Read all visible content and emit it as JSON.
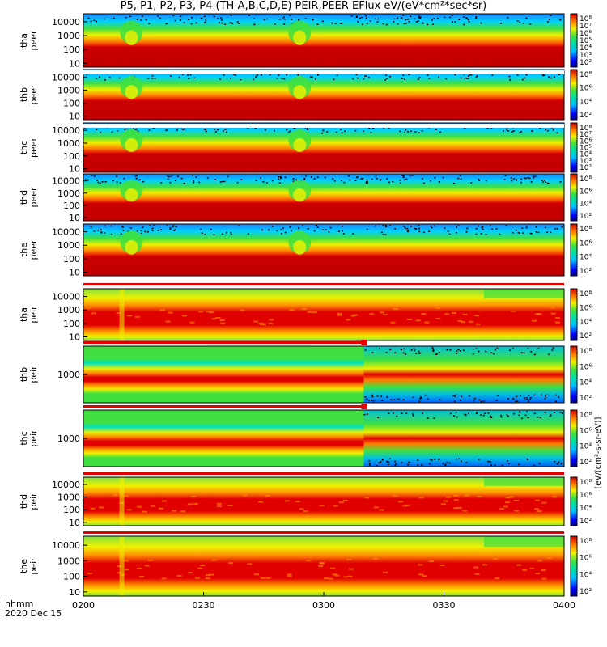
{
  "header": {
    "title": "P5, P1, P2, P3, P4 (TH-A,B,C,D,E) PEIR,PEER EFlux eV/(eV*cm²*sec*sr)"
  },
  "chart_data": {
    "type": "heatmap",
    "time_axis": {
      "label_line1": "hhmm",
      "label_line2": "2020 Dec 15",
      "ticks": [
        "0200",
        "0230",
        "0300",
        "0330",
        "0400"
      ],
      "range_minutes": [
        0,
        120
      ]
    },
    "colorbar_units": "[eV/(cm²-s-sr-eV)]",
    "panels": [
      {
        "id": "tha_peer",
        "line1": "tha",
        "line2": "peer",
        "yticks": [
          "10000",
          "1000",
          "100",
          "10"
        ],
        "cb_ticks": [
          "10⁸",
          "10⁷",
          "10⁶",
          "10⁵",
          "10⁴",
          "10³",
          "10²"
        ],
        "kind": "peer"
      },
      {
        "id": "thb_peer",
        "line1": "thb",
        "line2": "peer",
        "yticks": [
          "10000",
          "1000",
          "100",
          "10"
        ],
        "cb_ticks": [
          "10⁸",
          "10⁶",
          "10⁴",
          "10²"
        ],
        "kind": "peer"
      },
      {
        "id": "thc_peer",
        "line1": "thc",
        "line2": "peer",
        "yticks": [
          "10000",
          "1000",
          "100",
          "10"
        ],
        "cb_ticks": [
          "10⁸",
          "10⁷",
          "10⁶",
          "10⁵",
          "10⁴",
          "10³",
          "10²"
        ],
        "kind": "peer"
      },
      {
        "id": "thd_peer",
        "line1": "thd",
        "line2": "peer",
        "yticks": [
          "10000",
          "1000",
          "100",
          "10"
        ],
        "cb_ticks": [
          "10⁸",
          "10⁶",
          "10⁴",
          "10²"
        ],
        "kind": "peer"
      },
      {
        "id": "the_peer",
        "line1": "the",
        "line2": "peer",
        "yticks": [
          "10000",
          "1000",
          "100",
          "10"
        ],
        "cb_ticks": [
          "10⁸",
          "10⁶",
          "10⁴",
          "10²"
        ],
        "kind": "peer"
      },
      {
        "id": "tha_peir",
        "line1": "tha",
        "line2": "peir",
        "yticks": [
          "10000",
          "1000",
          "100",
          "10"
        ],
        "cb_ticks": [
          "10⁸",
          "10⁶",
          "10⁴",
          "10²"
        ],
        "kind": "peir"
      },
      {
        "id": "thb_peir",
        "line1": "thb",
        "line2": "peir",
        "yticks": [
          "1000"
        ],
        "cb_ticks": [
          "10⁸",
          "10⁶",
          "10⁴",
          "10²"
        ],
        "kind": "peir_split"
      },
      {
        "id": "thc_peir",
        "line1": "thc",
        "line2": "peir",
        "yticks": [
          "1000"
        ],
        "cb_ticks": [
          "10⁸",
          "10⁶",
          "10⁴",
          "10²"
        ],
        "kind": "peir_split"
      },
      {
        "id": "thd_peir",
        "line1": "thd",
        "line2": "peir",
        "yticks": [
          "10000",
          "1000",
          "100",
          "10"
        ],
        "cb_ticks": [
          "10⁸",
          "10⁶",
          "10⁴",
          "10²"
        ],
        "kind": "peir"
      },
      {
        "id": "the_peir",
        "line1": "the",
        "line2": "peir",
        "yticks": [
          "10000",
          "1000",
          "100",
          "10"
        ],
        "cb_ticks": [
          "10⁸",
          "10⁶",
          "10⁴",
          "10²"
        ],
        "kind": "peir"
      }
    ],
    "colors": {
      "red": "#e00000",
      "darkred": "#b80000",
      "orange": "#ff9000",
      "yellow": "#f0f000",
      "green": "#40e040",
      "cyan": "#00e0e0",
      "blue": "#0050ff",
      "black": "#000000"
    }
  }
}
